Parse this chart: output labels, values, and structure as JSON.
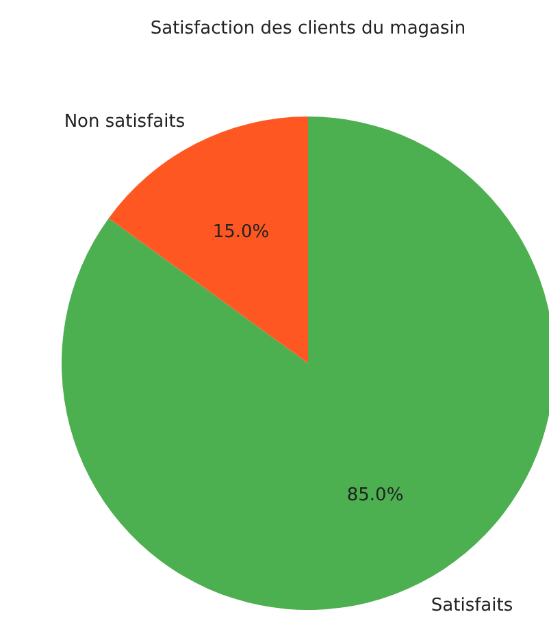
{
  "chart_data": {
    "type": "pie",
    "title": "Satisfaction des clients du magasin",
    "categories": [
      "Satisfaits",
      "Non satisfaits"
    ],
    "values": [
      85,
      15
    ],
    "value_labels": [
      "85.0%",
      "15.0%"
    ],
    "colors": [
      "#4caf50",
      "#ff5722"
    ],
    "legend": false
  }
}
